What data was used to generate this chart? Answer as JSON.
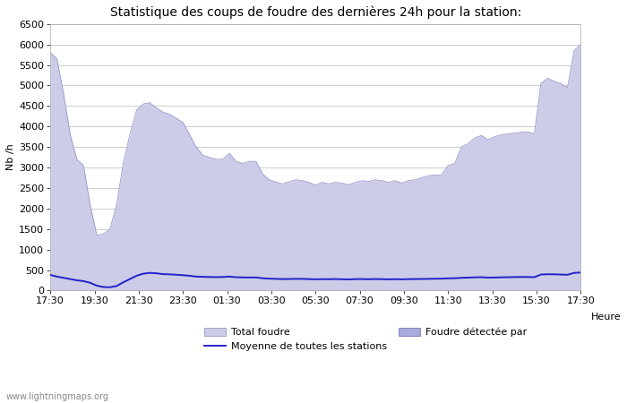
{
  "title": "Statistique des coups de foudre des dernières 24h pour la station:",
  "xlabel": "Heure",
  "ylabel": "Nb /h",
  "watermark": "www.lightningmaps.org",
  "ylim": [
    0,
    6500
  ],
  "yticks": [
    0,
    500,
    1000,
    1500,
    2000,
    2500,
    3000,
    3500,
    4000,
    4500,
    5000,
    5500,
    6000,
    6500
  ],
  "xtick_labels": [
    "17:30",
    "19:30",
    "21:30",
    "23:30",
    "01:30",
    "03:30",
    "05:30",
    "07:30",
    "09:30",
    "11:30",
    "13:30",
    "15:30",
    "17:30"
  ],
  "total_foudre_color": "#cccce8",
  "foudre_detectee_color": "#aaaadd",
  "moyenne_color": "#2222cc",
  "background_color": "#ffffff",
  "grid_color": "#cccccc",
  "title_fontsize": 10,
  "axis_fontsize": 8,
  "tick_fontsize": 8,
  "legend_fontsize": 8,
  "total_foudre_values": [
    5800,
    5650,
    4800,
    3800,
    3200,
    3050,
    2100,
    1350,
    1380,
    1500,
    2100,
    3100,
    3800,
    4400,
    4550,
    4580,
    4450,
    4350,
    4300,
    4200,
    4100,
    3800,
    3500,
    3300,
    3250,
    3200,
    3200,
    3350,
    3150,
    3100,
    3150,
    3150,
    2850,
    2700,
    2650,
    2600,
    2650,
    2700,
    2680,
    2640,
    2570,
    2640,
    2600,
    2640,
    2620,
    2580,
    2640,
    2680,
    2660,
    2700,
    2680,
    2640,
    2680,
    2620,
    2680,
    2700,
    2750,
    2800,
    2820,
    2820,
    3050,
    3100,
    3500,
    3580,
    3720,
    3780,
    3680,
    3750,
    3800,
    3820,
    3840,
    3860,
    3870,
    3820,
    5050,
    5180,
    5100,
    5050,
    4950,
    5850,
    6000
  ],
  "moyenne_values": [
    380,
    340,
    310,
    280,
    250,
    230,
    190,
    120,
    85,
    80,
    110,
    200,
    280,
    360,
    410,
    430,
    420,
    400,
    395,
    385,
    375,
    360,
    340,
    335,
    330,
    328,
    330,
    340,
    325,
    320,
    318,
    320,
    300,
    290,
    285,
    280,
    282,
    285,
    284,
    278,
    274,
    278,
    276,
    280,
    275,
    272,
    278,
    280,
    276,
    280,
    278,
    273,
    278,
    273,
    278,
    280,
    282,
    285,
    288,
    290,
    298,
    300,
    310,
    315,
    322,
    325,
    316,
    318,
    322,
    325,
    328,
    330,
    330,
    326,
    390,
    398,
    395,
    390,
    385,
    430,
    440
  ]
}
